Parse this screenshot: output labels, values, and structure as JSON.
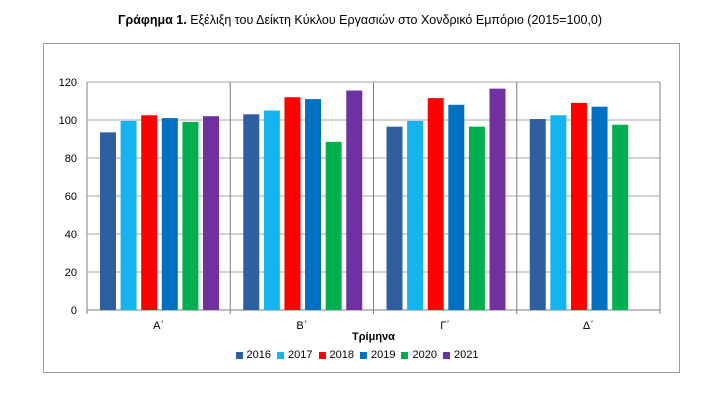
{
  "title": {
    "bold": "Γράφημα 1.",
    "text": " Εξέλιξη του Δείκτη Κύκλου Εργασιών στο Χονδρικό Εμπόριο (2015=100,0)"
  },
  "chart_data": {
    "type": "bar",
    "title": "Γράφημα 1. Εξέλιξη του Δείκτη Κύκλου Εργασιών στο Χονδρικό Εμπόριο (2015=100,0)",
    "xlabel": "Τρίμηνα",
    "ylabel": "",
    "ylim": [
      0,
      120
    ],
    "yticks": [
      0,
      20,
      40,
      60,
      80,
      100,
      120
    ],
    "grid": true,
    "legend_position": "bottom",
    "categories": [
      "Α΄",
      "Β΄",
      "Γ΄",
      "Δ΄"
    ],
    "series": [
      {
        "name": "2016",
        "color": "#2f5f9e",
        "values": [
          93.5,
          103,
          96.5,
          100.5
        ]
      },
      {
        "name": "2017",
        "color": "#14b4f0",
        "values": [
          99.5,
          105,
          99.5,
          102.5
        ]
      },
      {
        "name": "2018",
        "color": "#ff0000",
        "values": [
          102.5,
          112,
          111.5,
          109
        ]
      },
      {
        "name": "2019",
        "color": "#0070c0",
        "values": [
          101,
          111,
          108,
          107
        ]
      },
      {
        "name": "2020",
        "color": "#00b050",
        "values": [
          99,
          88.5,
          96.5,
          97.5
        ]
      },
      {
        "name": "2021",
        "color": "#7030a0",
        "values": [
          102,
          115.5,
          116.5,
          null
        ]
      }
    ]
  }
}
